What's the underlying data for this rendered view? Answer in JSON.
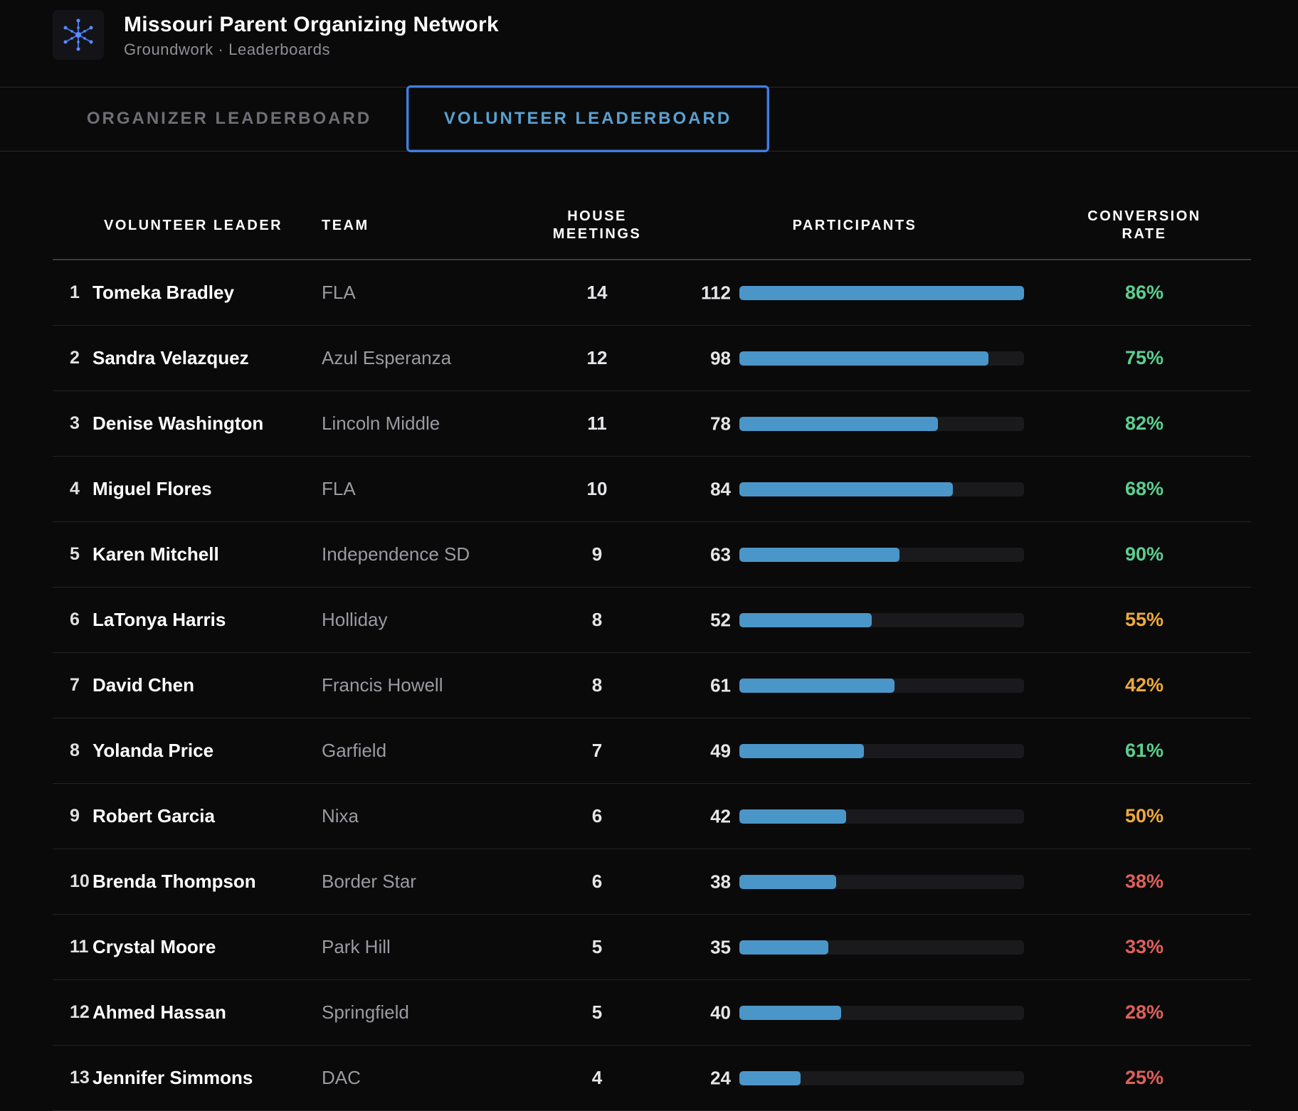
{
  "app": {
    "title": "Missouri Parent Organizing Network",
    "subtitle": "Groundwork · Leaderboards",
    "logo_icon": "snowflake-network-icon"
  },
  "tabs": [
    {
      "label": "ORGANIZER LEADERBOARD",
      "active": false
    },
    {
      "label": "VOLUNTEER LEADERBOARD",
      "active": true
    }
  ],
  "table": {
    "headers": {
      "leader": "VOLUNTEER LEADER",
      "team": "TEAM",
      "house_meetings": "HOUSE MEETINGS",
      "participants": "PARTICIPANTS",
      "conversion": "CONVERSION RATE"
    },
    "max_participants": 112,
    "rows": [
      {
        "rank": "1",
        "name": "Tomeka Bradley",
        "team": "FLA",
        "house_meetings": "14",
        "participants": 112,
        "conversion": "86%"
      },
      {
        "rank": "2",
        "name": "Sandra Velazquez",
        "team": "Azul Esperanza",
        "house_meetings": "12",
        "participants": 98,
        "conversion": "75%"
      },
      {
        "rank": "3",
        "name": "Denise Washington",
        "team": "Lincoln Middle",
        "house_meetings": "11",
        "participants": 78,
        "conversion": "82%"
      },
      {
        "rank": "4",
        "name": "Miguel Flores",
        "team": "FLA",
        "house_meetings": "10",
        "participants": 84,
        "conversion": "68%"
      },
      {
        "rank": "5",
        "name": "Karen Mitchell",
        "team": "Independence SD",
        "house_meetings": "9",
        "participants": 63,
        "conversion": "90%"
      },
      {
        "rank": "6",
        "name": "LaTonya Harris",
        "team": "Holliday",
        "house_meetings": "8",
        "participants": 52,
        "conversion": "55%"
      },
      {
        "rank": "7",
        "name": "David Chen",
        "team": "Francis Howell",
        "house_meetings": "8",
        "participants": 61,
        "conversion": "42%"
      },
      {
        "rank": "8",
        "name": "Yolanda Price",
        "team": "Garfield",
        "house_meetings": "7",
        "participants": 49,
        "conversion": "61%"
      },
      {
        "rank": "9",
        "name": "Robert Garcia",
        "team": "Nixa",
        "house_meetings": "6",
        "participants": 42,
        "conversion": "50%"
      },
      {
        "rank": "10",
        "name": "Brenda Thompson",
        "team": "Border Star",
        "house_meetings": "6",
        "participants": 38,
        "conversion": "38%"
      },
      {
        "rank": "11",
        "name": "Crystal Moore",
        "team": "Park Hill",
        "house_meetings": "5",
        "participants": 35,
        "conversion": "33%"
      },
      {
        "rank": "12",
        "name": "Ahmed Hassan",
        "team": "Springfield",
        "house_meetings": "5",
        "participants": 40,
        "conversion": "28%"
      },
      {
        "rank": "13",
        "name": "Jennifer Simmons",
        "team": "DAC",
        "house_meetings": "4",
        "participants": 24,
        "conversion": "25%"
      }
    ]
  },
  "colors": {
    "bar": "#4a96c8",
    "conversion_high": "#5ccf8f",
    "conversion_mid": "#f0a93c",
    "conversion_low": "#e0605a",
    "active_tab_border": "#3f7fe0",
    "active_tab_text": "#5aa1d0"
  }
}
